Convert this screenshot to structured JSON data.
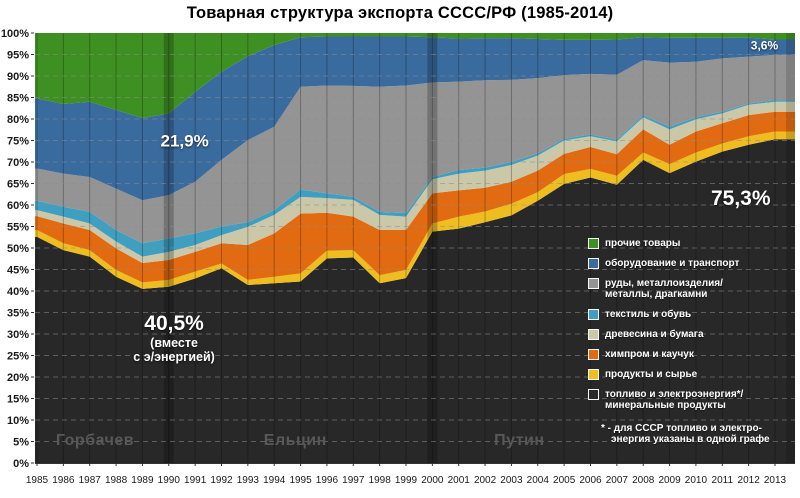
{
  "page": {
    "title": "Товарная структура экспорта СССС/РФ (1985-2014)"
  },
  "chart_data": {
    "type": "area",
    "stacked": true,
    "title": "Товарная структура экспорта СССС/РФ (1985-2014)",
    "xlabel": "",
    "ylabel": "",
    "ylim": [
      0,
      100
    ],
    "y_ticks": [
      "0%",
      "5%",
      "10%",
      "15%",
      "20%",
      "25%",
      "30%",
      "35%",
      "40%",
      "45%",
      "50%",
      "55%",
      "60%",
      "65%",
      "70%",
      "75%",
      "80%",
      "85%",
      "90%",
      "95%",
      "100%"
    ],
    "grid": {
      "horizontal": "dashed",
      "vertical": "solid"
    },
    "legend_position": "right-inside",
    "x": [
      1985,
      1986,
      1987,
      1988,
      1989,
      1990,
      1991,
      1992,
      1993,
      1994,
      1995,
      1996,
      1997,
      1998,
      1999,
      2000,
      2001,
      2002,
      2003,
      2004,
      2005,
      2006,
      2007,
      2008,
      2009,
      2010,
      2011,
      2012,
      2013
    ],
    "series": [
      {
        "id": "fuel-minerals",
        "name": "топливо и электроэнергия*/минеральные продукты",
        "color": "#282828",
        "values": [
          52.6,
          49.5,
          48.0,
          43.3,
          40.5,
          41.0,
          42.9,
          45.3,
          41.4,
          41.8,
          42.2,
          47.6,
          47.8,
          41.8,
          43.0,
          53.8,
          54.5,
          56.0,
          57.6,
          61.0,
          64.9,
          66.4,
          64.7,
          70.5,
          67.4,
          70.1,
          72.4,
          74.0,
          75.3
        ]
      },
      {
        "id": "products-raw",
        "name": "продукты и сырье",
        "color": "#eebd20",
        "values": [
          1.6,
          1.6,
          1.5,
          1.6,
          1.5,
          1.6,
          1.6,
          1.1,
          1.2,
          1.5,
          1.9,
          1.8,
          1.7,
          1.9,
          1.9,
          1.9,
          2.8,
          2.5,
          2.7,
          2.0,
          2.3,
          2.0,
          2.1,
          1.7,
          2.1,
          2.1,
          1.9,
          2.0,
          1.8
        ]
      },
      {
        "id": "chemicals-rubber",
        "name": "химпром и каучук",
        "color": "#e26a10",
        "values": [
          3.2,
          4.6,
          4.7,
          5.0,
          4.5,
          4.6,
          4.6,
          4.7,
          8.1,
          10.1,
          13.9,
          8.8,
          7.8,
          10.5,
          9.3,
          7.0,
          6.1,
          5.5,
          5.1,
          5.0,
          4.7,
          5.1,
          5.0,
          5.4,
          4.5,
          4.9,
          4.7,
          4.9,
          4.6
        ]
      },
      {
        "id": "wood-paper",
        "name": "древесина и бумага",
        "color": "#cbc7a9",
        "values": [
          1.4,
          1.6,
          1.5,
          1.6,
          1.5,
          1.9,
          1.6,
          1.9,
          4.2,
          4.3,
          3.9,
          3.4,
          3.9,
          3.5,
          3.1,
          3.3,
          3.9,
          4.0,
          3.9,
          3.5,
          3.1,
          2.5,
          3.0,
          2.8,
          3.6,
          2.8,
          2.3,
          2.4,
          2.3
        ]
      },
      {
        "id": "textile-shoes",
        "name": "текстиль и обувь",
        "color": "#3e9fc0",
        "values": [
          2.2,
          2.3,
          2.7,
          2.7,
          3.1,
          3.1,
          2.7,
          2.0,
          1.1,
          1.1,
          1.7,
          1.1,
          0.7,
          0.7,
          0.8,
          0.5,
          0.8,
          0.7,
          0.7,
          0.5,
          0.4,
          0.4,
          0.4,
          0.5,
          0.6,
          0.5,
          0.4,
          0.3,
          0.4
        ]
      },
      {
        "id": "ores-metals",
        "name": "руды, металлоизделия/металлы, драгкамни",
        "color": "#949494",
        "values": [
          7.5,
          7.7,
          8.1,
          9.6,
          10.0,
          10.1,
          12.0,
          15.5,
          19.1,
          19.4,
          23.9,
          25.1,
          25.8,
          29.1,
          29.7,
          22.0,
          20.6,
          20.3,
          19.1,
          17.5,
          14.8,
          14.1,
          15.1,
          12.8,
          14.9,
          12.9,
          12.4,
          10.9,
          10.5
        ]
      },
      {
        "id": "machinery-transport",
        "name": "оборудование и транспорт",
        "color": "#3a6b9e",
        "values": [
          16.3,
          16.2,
          17.5,
          18.3,
          19.1,
          19.0,
          20.9,
          20.5,
          19.5,
          19.0,
          11.5,
          11.4,
          11.5,
          11.7,
          11.4,
          10.5,
          10.0,
          9.8,
          9.7,
          9.1,
          8.2,
          7.9,
          8.2,
          5.3,
          5.8,
          5.6,
          4.8,
          4.4,
          3.6
        ]
      },
      {
        "id": "other-goods",
        "name": "прочие товары",
        "color": "#3f9023",
        "values": [
          15.2,
          16.5,
          16.0,
          17.9,
          19.8,
          18.7,
          13.7,
          9.0,
          5.4,
          2.8,
          1.0,
          0.8,
          0.8,
          0.8,
          0.8,
          1.0,
          1.3,
          1.2,
          1.2,
          1.4,
          1.6,
          1.6,
          1.5,
          1.0,
          1.1,
          1.1,
          1.1,
          1.1,
          1.5
        ]
      }
    ],
    "legend": {
      "items": [
        {
          "label": "прочие товары",
          "color": "#3f9023"
        },
        {
          "label": "оборудование и транспорт",
          "color": "#3a6b9e"
        },
        {
          "label": "руды, металлоизделия/\nметаллы, драгкамни",
          "color": "#949494"
        },
        {
          "label": "текстиль и обувь",
          "color": "#3e9fc0"
        },
        {
          "label": "древесина и бумага",
          "color": "#cbc7a9"
        },
        {
          "label": "химпром и каучук",
          "color": "#e26a10"
        },
        {
          "label": "продукты и сырье",
          "color": "#eebd20"
        },
        {
          "label": "топливо и электроэнергия*/\nминеральные продукты",
          "color": "#282828"
        }
      ],
      "footnote_lines": [
        "* - для СССР топливо и электро-",
        "энергия  указаны в одной графе"
      ]
    },
    "annotations": [
      {
        "text": "21,9%",
        "year": 1990.6,
        "pct": 75.0,
        "size": 17
      },
      {
        "text": "40,5%",
        "sub": "(вместе\nс э/энергией)",
        "year": 1990.2,
        "pct": 29.0,
        "size": 21
      },
      {
        "text": "75,3%",
        "year": 2011.7,
        "pct": 61.5,
        "size": 21
      },
      {
        "text": "3,6%",
        "year": 2012.6,
        "pct": 97.0,
        "size": 12
      }
    ],
    "era_labels": [
      {
        "text": "Горбачев",
        "year": 1987.2,
        "pct": 5.1
      },
      {
        "text": "Ельцин",
        "year": 1994.8,
        "pct": 5.1
      },
      {
        "text": "Путин",
        "year": 2003.3,
        "pct": 5.1
      }
    ],
    "era_dividers": [
      1990,
      2000
    ],
    "colors": {
      "grid_h": "rgba(140,140,140,0.55)",
      "grid_v": "rgba(0,0,0,0.27)",
      "era_band": "rgba(0,0,0,0.22)",
      "axis_text": "#1a1a1a"
    }
  }
}
